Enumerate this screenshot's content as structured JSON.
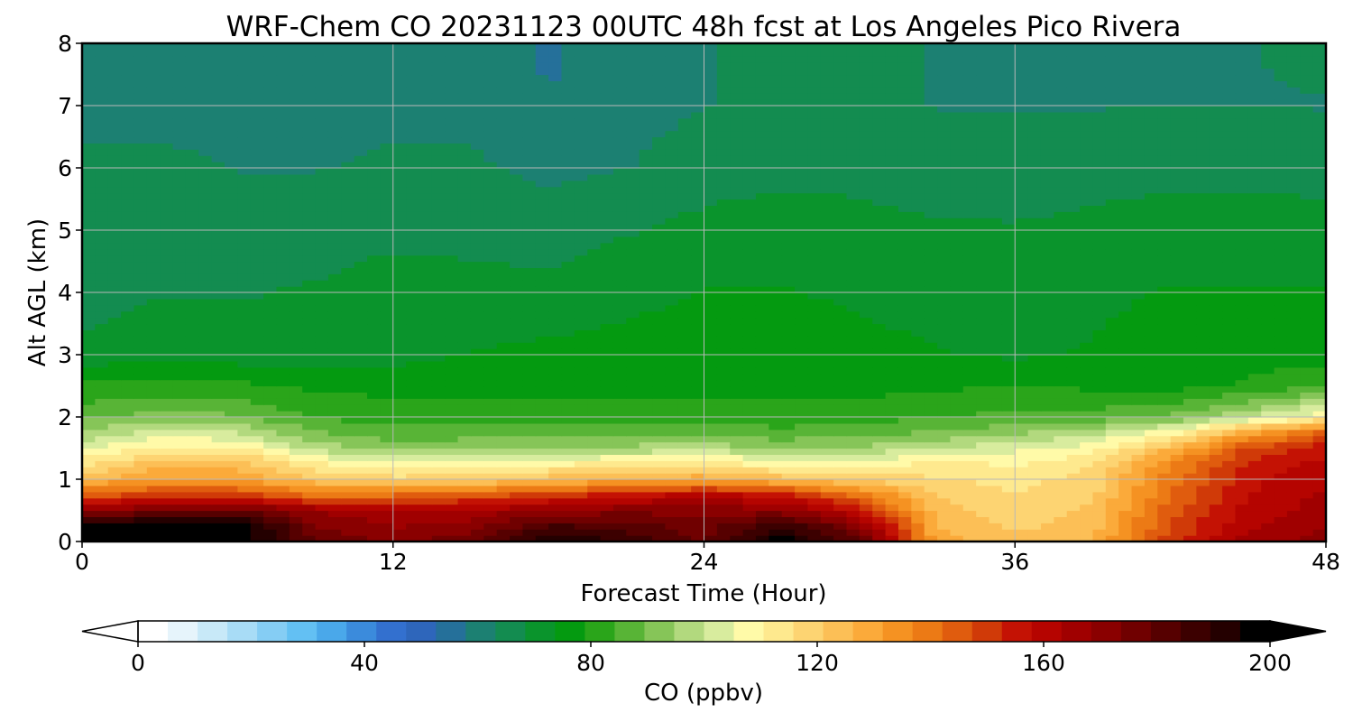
{
  "chart_data": {
    "type": "heatmap",
    "title": "WRF-Chem CO  20231123 00UTC 48h fcst at Los Angeles Pico Rivera",
    "xlabel": "Forecast Time (Hour)",
    "ylabel": "Alt AGL (km)",
    "xlim": [
      0,
      48
    ],
    "ylim": [
      0,
      8
    ],
    "xticks": [
      0,
      12,
      24,
      36,
      48
    ],
    "yticks": [
      0,
      1,
      2,
      3,
      4,
      5,
      6,
      7,
      8
    ],
    "grid": true,
    "x": [
      0,
      3,
      6,
      9,
      12,
      15,
      18,
      21,
      24,
      27,
      30,
      33,
      36,
      39,
      42,
      45,
      48
    ],
    "y": [
      0,
      0.25,
      0.5,
      0.75,
      1,
      1.25,
      1.5,
      1.75,
      2,
      2.5,
      3,
      4,
      5,
      6,
      7,
      8
    ],
    "z": [
      [
        200,
        200,
        200,
        178,
        172,
        178,
        196,
        188,
        178,
        198,
        180,
        130,
        122,
        126,
        150,
        165,
        172
      ],
      [
        200,
        200,
        200,
        174,
        168,
        170,
        185,
        182,
        176,
        190,
        172,
        126,
        120,
        124,
        148,
        162,
        168
      ],
      [
        170,
        175,
        180,
        168,
        164,
        165,
        170,
        172,
        172,
        170,
        158,
        124,
        118,
        122,
        145,
        160,
        166
      ],
      [
        145,
        150,
        150,
        140,
        142,
        145,
        150,
        156,
        160,
        156,
        140,
        120,
        116,
        120,
        142,
        158,
        164
      ],
      [
        125,
        132,
        132,
        122,
        118,
        120,
        124,
        128,
        130,
        124,
        120,
        116,
        114,
        118,
        140,
        156,
        162
      ],
      [
        115,
        124,
        124,
        112,
        106,
        108,
        110,
        112,
        114,
        108,
        108,
        112,
        110,
        115,
        136,
        154,
        160
      ],
      [
        104,
        112,
        112,
        98,
        92,
        94,
        96,
        96,
        98,
        94,
        96,
        100,
        104,
        108,
        126,
        148,
        156
      ],
      [
        96,
        102,
        100,
        90,
        86,
        87,
        88,
        88,
        88,
        86,
        88,
        90,
        94,
        98,
        108,
        130,
        144
      ],
      [
        88,
        92,
        90,
        84,
        82,
        82,
        83,
        82,
        82,
        81,
        82,
        84,
        86,
        86,
        90,
        100,
        110
      ],
      [
        80,
        81,
        80,
        78,
        77,
        77,
        77,
        77,
        77,
        77,
        77,
        78,
        79,
        78,
        77,
        80,
        84
      ],
      [
        70,
        72,
        71,
        71,
        72,
        74,
        75,
        76,
        76,
        76,
        75,
        74,
        73,
        74,
        75,
        76,
        77
      ],
      [
        66,
        68,
        68,
        69,
        71,
        70,
        70,
        72,
        74,
        74,
        73,
        72,
        72,
        73,
        74,
        74,
        74
      ],
      [
        66,
        67,
        66,
        66,
        67,
        67,
        66,
        68,
        70,
        71,
        70,
        69,
        69,
        70,
        71,
        71,
        71
      ],
      [
        64,
        64,
        63,
        63,
        64,
        64,
        62,
        63,
        66,
        67,
        67,
        66,
        65,
        66,
        67,
        67,
        66
      ],
      [
        62,
        62,
        62,
        61,
        62,
        62,
        58,
        61,
        63,
        64,
        64,
        63,
        63,
        63,
        63,
        63,
        63
      ],
      [
        63,
        62,
        61,
        61,
        62,
        62,
        57,
        61,
        63,
        64,
        64,
        63,
        63,
        63,
        63,
        63,
        64
      ]
    ],
    "colorbar": {
      "label": "CO  (ppbv)",
      "ticks": [
        0,
        40,
        80,
        120,
        160,
        200
      ],
      "range": [
        0,
        200
      ],
      "extend": "both",
      "orientation": "horizontal",
      "colors": [
        "#ffffff",
        "#e6f4fb",
        "#c8e9f8",
        "#a8dcf6",
        "#85cdf4",
        "#63c0f3",
        "#4aa8ea",
        "#3b8bdc",
        "#3370cf",
        "#2e66bb",
        "#25709a",
        "#1c8072",
        "#138c50",
        "#0a942c",
        "#049a10",
        "#2aa51a",
        "#58b436",
        "#86c558",
        "#b2d97e",
        "#d8ec9e",
        "#fffaa8",
        "#fee98e",
        "#fdd472",
        "#fcbf56",
        "#fbaa3a",
        "#f59222",
        "#ec7a15",
        "#e05c0e",
        "#d03a08",
        "#c41204",
        "#b50400",
        "#a00000",
        "#8a0000",
        "#700000",
        "#560000",
        "#3c0000",
        "#240000",
        "#000000"
      ]
    }
  }
}
